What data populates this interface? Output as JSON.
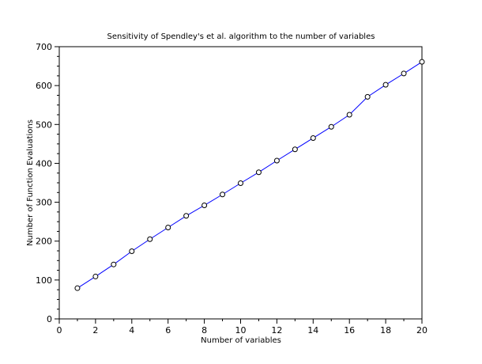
{
  "chart_data": {
    "type": "line",
    "title": "Sensitivity of Spendley's et al. algorithm to the number of variables",
    "xlabel": "Number of variables",
    "ylabel": "Number of Function Evaluations",
    "xlim": [
      0,
      20
    ],
    "ylim": [
      0,
      700
    ],
    "x_ticks": [
      0,
      2,
      4,
      6,
      8,
      10,
      12,
      14,
      16,
      18,
      20
    ],
    "y_ticks": [
      0,
      100,
      200,
      300,
      400,
      500,
      600,
      700
    ],
    "grid": false,
    "series": [
      {
        "color": "#0000ff",
        "marker": "circle",
        "x": [
          1,
          2,
          3,
          4,
          5,
          6,
          7,
          8,
          9,
          10,
          11,
          12,
          13,
          14,
          15,
          16,
          17,
          18,
          19,
          20
        ],
        "y": [
          79,
          109,
          140,
          174,
          205,
          235,
          265,
          292,
          320,
          349,
          377,
          407,
          436,
          465,
          494,
          525,
          571,
          602,
          631,
          661
        ]
      }
    ]
  }
}
